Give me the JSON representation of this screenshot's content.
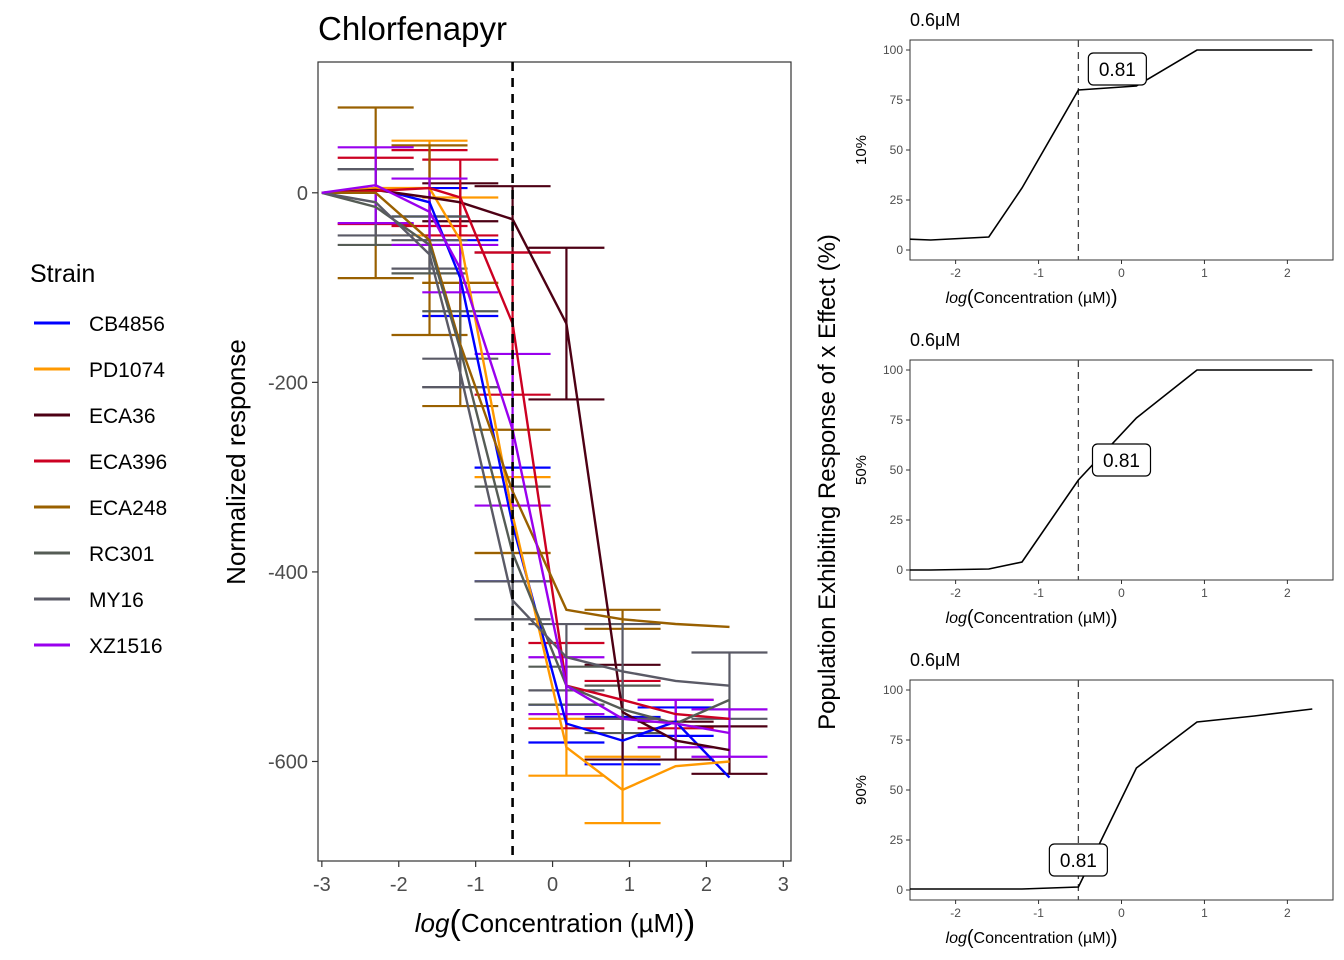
{
  "legend": {
    "title": "Strain",
    "entries": [
      {
        "name": "CB4856",
        "color": "#0000ff"
      },
      {
        "name": "PD1074",
        "color": "#ff9900"
      },
      {
        "name": "ECA36",
        "color": "#4d0014"
      },
      {
        "name": "ECA396",
        "color": "#cc0022"
      },
      {
        "name": "ECA248",
        "color": "#996000"
      },
      {
        "name": "RC301",
        "color": "#555c55"
      },
      {
        "name": "MY16",
        "color": "#5a5a66"
      },
      {
        "name": "XZ1516",
        "color": "#9900ee"
      }
    ]
  },
  "shared_ylabel": "Population Exhibiting Response of x Effect (%)",
  "chart_data": [
    {
      "type": "line",
      "title": "Chlorfenapyr",
      "xlabel_italic": "log",
      "xlabel_rest": "Concentration (µM)",
      "ylabel": "Normalized response",
      "xlim": [
        -3.05,
        3.1
      ],
      "ylim": [
        -705,
        138
      ],
      "xticks": [
        -3,
        -2,
        -1,
        0,
        1,
        2,
        3
      ],
      "yticks": [
        -600,
        -400,
        -200,
        0
      ],
      "vline_x": -0.52,
      "x": [
        -3,
        -2.3,
        -1.6,
        -1.2,
        -0.52,
        0.18,
        0.91,
        1.6,
        2.3
      ],
      "series": [
        {
          "name": "CB4856",
          "color": "#0000ff",
          "values": [
            0,
            5,
            -10,
            -90,
            -350,
            -560,
            -578,
            -558,
            -617
          ],
          "err": [
            0,
            0,
            15,
            40,
            60,
            20,
            25,
            15,
            0
          ]
        },
        {
          "name": "PD1074",
          "color": "#ff9900",
          "values": [
            0,
            5,
            5,
            -50,
            -340,
            -585,
            -630,
            -605,
            -600
          ],
          "err": [
            0,
            0,
            50,
            45,
            40,
            30,
            35,
            0,
            0
          ]
        },
        {
          "name": "ECA36",
          "color": "#4d0014",
          "values": [
            0,
            3,
            -5,
            -10,
            -28,
            -138,
            -548,
            -578,
            -588
          ],
          "err": [
            0,
            0,
            0,
            20,
            35,
            80,
            50,
            20,
            25
          ]
        },
        {
          "name": "ECA396",
          "color": "#cc0022",
          "values": [
            0,
            2,
            5,
            -5,
            -138,
            -520,
            -535,
            -550,
            -555
          ],
          "err": [
            0,
            35,
            40,
            40,
            75,
            45,
            20,
            15,
            0
          ]
        },
        {
          "name": "ECA248",
          "color": "#996000",
          "values": [
            0,
            0,
            -50,
            -160,
            -315,
            -440,
            -450,
            -455,
            -458
          ],
          "err": [
            0,
            90,
            100,
            65,
            65,
            0,
            10,
            0,
            0
          ]
        },
        {
          "name": "RC301",
          "color": "#555c55",
          "values": [
            0,
            -15,
            -55,
            -165,
            -380,
            -520,
            -545,
            -560,
            -535
          ],
          "err": [
            0,
            40,
            30,
            40,
            70,
            20,
            25,
            0,
            0
          ]
        },
        {
          "name": "MY16",
          "color": "#5a5a66",
          "values": [
            0,
            -10,
            -65,
            -190,
            -430,
            -490,
            -505,
            -515,
            -520
          ],
          "err": [
            0,
            35,
            15,
            15,
            20,
            35,
            50,
            0,
            35
          ]
        },
        {
          "name": "XZ1516",
          "color": "#9900ee",
          "values": [
            0,
            8,
            -20,
            -80,
            -250,
            -520,
            -555,
            -560,
            -570
          ],
          "err": [
            0,
            40,
            35,
            25,
            80,
            30,
            0,
            25,
            25
          ]
        }
      ]
    },
    {
      "type": "line",
      "title": "0.6μM",
      "ylabel": "10%",
      "xlabel_italic": "log",
      "xlabel_rest": "Concentration (µM)",
      "xlim": [
        -2.55,
        2.55
      ],
      "ylim": [
        -5,
        105
      ],
      "xticks": [
        -2,
        -1,
        0,
        1,
        2
      ],
      "yticks": [
        0,
        25,
        50,
        75,
        100
      ],
      "vline_x": -0.52,
      "x": [
        -2.6,
        -2.3,
        -1.6,
        -1.2,
        -0.52,
        0.18,
        0.91,
        1.6,
        2.3
      ],
      "values": [
        5.5,
        5,
        6.5,
        31,
        80,
        82,
        100,
        100,
        100
      ],
      "label_value": "0.81",
      "label_at": [
        -0.05,
        90.5
      ]
    },
    {
      "type": "line",
      "title": "0.6μM",
      "ylabel": "50%",
      "xlabel_italic": "log",
      "xlabel_rest": "Concentration (µM)",
      "xlim": [
        -2.55,
        2.55
      ],
      "ylim": [
        -5,
        105
      ],
      "xticks": [
        -2,
        -1,
        0,
        1,
        2
      ],
      "yticks": [
        0,
        25,
        50,
        75,
        100
      ],
      "vline_x": -0.52,
      "x": [
        -2.6,
        -2.3,
        -1.6,
        -1.2,
        -0.52,
        0.18,
        0.91,
        1.6,
        2.3
      ],
      "values": [
        0,
        0,
        0.5,
        4,
        45,
        76,
        100,
        100,
        100
      ],
      "label_value": "0.81",
      "label_at": [
        0.0,
        55
      ]
    },
    {
      "type": "line",
      "title": "0.6μM",
      "ylabel": "90%",
      "xlabel_italic": "log",
      "xlabel_rest": "Concentration (µM)",
      "xlim": [
        -2.55,
        2.55
      ],
      "ylim": [
        -5,
        105
      ],
      "xticks": [
        -2,
        -1,
        0,
        1,
        2
      ],
      "yticks": [
        0,
        25,
        50,
        75,
        100
      ],
      "vline_x": -0.52,
      "x": [
        -2.6,
        -2.3,
        -1.6,
        -1.2,
        -0.52,
        0.18,
        0.91,
        1.6,
        2.3
      ],
      "values": [
        0.5,
        0.5,
        0.5,
        0.5,
        1.5,
        61,
        84,
        87,
        90.5
      ],
      "label_value": "0.81",
      "label_at": [
        -0.52,
        15
      ]
    }
  ]
}
